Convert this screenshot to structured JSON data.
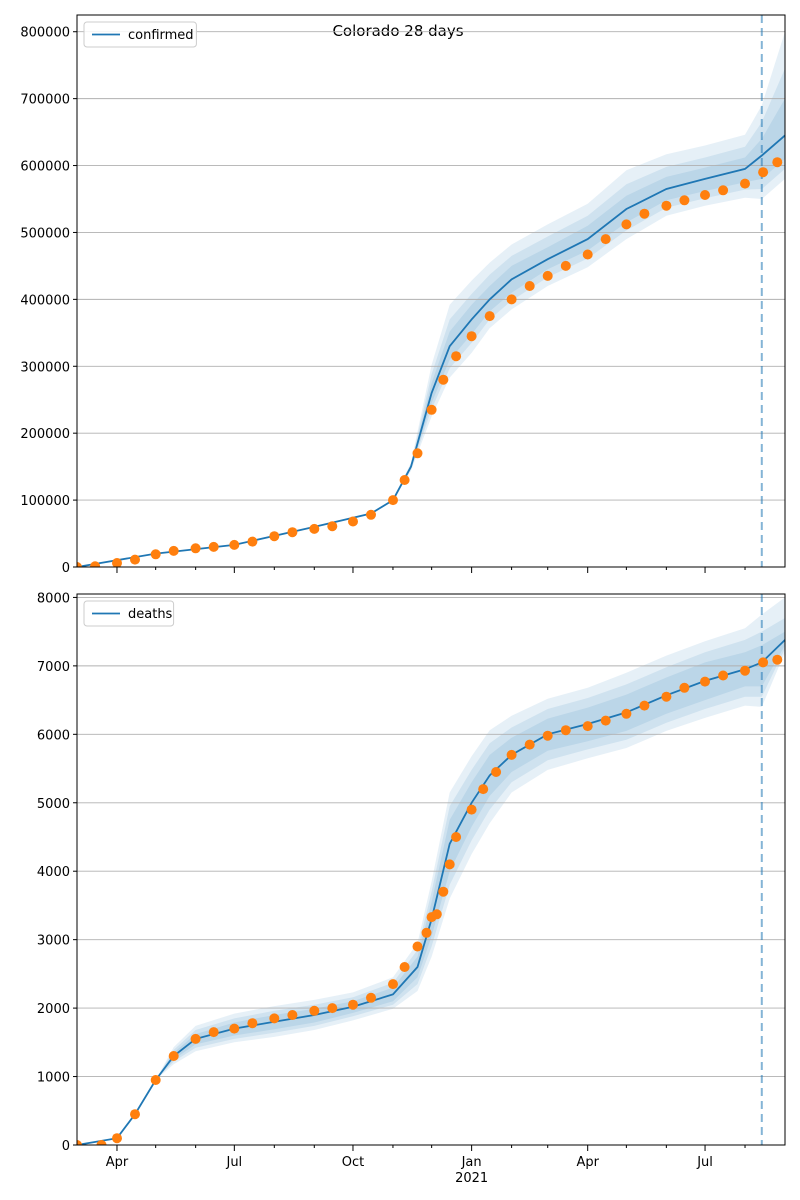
{
  "figure": {
    "title": "Colorado 28 days"
  },
  "chart_data": [
    {
      "type": "line",
      "title": "Colorado 28 days",
      "xlabel": "",
      "ylabel": "",
      "x_range": [
        "2020-03-01",
        "2021-09-01"
      ],
      "ylim": [
        0,
        825000
      ],
      "x_ticks": [
        {
          "date": "2020-04-01",
          "label": "Apr"
        },
        {
          "date": "2020-07-01",
          "label": "Jul"
        },
        {
          "date": "2020-10-01",
          "label": "Oct"
        },
        {
          "date": "2021-01-01",
          "label": "Jan",
          "sublabel": "2021"
        },
        {
          "date": "2021-04-01",
          "label": "Apr"
        },
        {
          "date": "2021-07-01",
          "label": "Jul"
        }
      ],
      "y_ticks": [
        0,
        100000,
        200000,
        300000,
        400000,
        500000,
        600000,
        700000,
        800000
      ],
      "grid": "horizontal",
      "legend": {
        "position": "top-left",
        "entries": [
          "confirmed"
        ]
      },
      "forecast_start": "2021-08-14",
      "series": [
        {
          "name": "confirmed",
          "role": "model",
          "color": "#1f77b4",
          "x": [
            "2020-03-01",
            "2020-05-01",
            "2020-07-01",
            "2020-09-01",
            "2020-10-15",
            "2020-11-01",
            "2020-11-15",
            "2020-12-01",
            "2020-12-15",
            "2021-01-01",
            "2021-01-15",
            "2021-02-01",
            "2021-03-01",
            "2021-04-01",
            "2021-05-01",
            "2021-06-01",
            "2021-07-01",
            "2021-08-01",
            "2021-08-14",
            "2021-09-01"
          ],
          "values": [
            0,
            20000,
            33000,
            60000,
            80000,
            100000,
            150000,
            260000,
            330000,
            370000,
            400000,
            430000,
            460000,
            490000,
            535000,
            565000,
            580000,
            595000,
            615000,
            645000
          ],
          "bands": [
            {
              "lower": [
                0,
                20000,
                33000,
                60000,
                80000,
                100000,
                148000,
                245000,
                310000,
                348000,
                382000,
                410000,
                445000,
                473000,
                515000,
                548000,
                562000,
                575000,
                580000,
                610000
              ],
              "upper": [
                0,
                20000,
                33000,
                60000,
                80000,
                100000,
                152000,
                275000,
                352000,
                392000,
                420000,
                450000,
                478000,
                510000,
                555000,
                583000,
                597000,
                612000,
                640000,
                700000
              ]
            },
            {
              "lower": [
                0,
                20000,
                33000,
                60000,
                80000,
                100000,
                146000,
                236000,
                297000,
                335000,
                370000,
                398000,
                433000,
                461000,
                503000,
                537000,
                551000,
                564000,
                565000,
                595000
              ],
              "upper": [
                0,
                20000,
                33000,
                60000,
                80000,
                100000,
                154000,
                288000,
                370000,
                408000,
                437000,
                465000,
                494000,
                525000,
                572000,
                598000,
                612000,
                628000,
                665000,
                745000
              ]
            },
            {
              "lower": [
                0,
                20000,
                33000,
                60000,
                80000,
                100000,
                144000,
                225000,
                283000,
                320000,
                357000,
                385000,
                420000,
                448000,
                490000,
                525000,
                540000,
                552000,
                550000,
                580000
              ],
              "upper": [
                0,
                20000,
                33000,
                60000,
                80000,
                100000,
                156000,
                302000,
                392000,
                428000,
                455000,
                482000,
                512000,
                543000,
                593000,
                617000,
                630000,
                646000,
                690000,
                800000
              ]
            }
          ]
        },
        {
          "name": "",
          "role": "observed",
          "color": "#ff7f0e",
          "x": [
            "2020-03-01",
            "2020-03-15",
            "2020-04-01",
            "2020-04-15",
            "2020-05-01",
            "2020-05-15",
            "2020-06-01",
            "2020-06-15",
            "2020-07-01",
            "2020-07-15",
            "2020-08-01",
            "2020-08-15",
            "2020-09-01",
            "2020-09-15",
            "2020-10-01",
            "2020-10-15",
            "2020-11-01",
            "2020-11-10",
            "2020-11-20",
            "2020-12-01",
            "2020-12-10",
            "2020-12-20",
            "2021-01-01",
            "2021-01-15",
            "2021-02-01",
            "2021-02-15",
            "2021-03-01",
            "2021-03-15",
            "2021-04-01",
            "2021-04-15",
            "2021-05-01",
            "2021-05-15",
            "2021-06-01",
            "2021-06-15",
            "2021-07-01",
            "2021-07-15",
            "2021-08-01",
            "2021-08-15",
            "2021-08-26"
          ],
          "values": [
            0,
            1000,
            6000,
            11000,
            19000,
            24000,
            28000,
            30000,
            33000,
            38000,
            46000,
            52000,
            57000,
            61000,
            68000,
            78000,
            100000,
            130000,
            170000,
            235000,
            280000,
            315000,
            345000,
            375000,
            400000,
            420000,
            435000,
            450000,
            467000,
            490000,
            512000,
            528000,
            540000,
            548000,
            556000,
            563000,
            573000,
            590000,
            605000
          ]
        }
      ]
    },
    {
      "type": "line",
      "title": "",
      "xlabel": "",
      "ylabel": "",
      "x_range": [
        "2020-03-01",
        "2021-09-01"
      ],
      "ylim": [
        0,
        8050
      ],
      "x_ticks": [
        {
          "date": "2020-04-01",
          "label": "Apr"
        },
        {
          "date": "2020-07-01",
          "label": "Jul"
        },
        {
          "date": "2020-10-01",
          "label": "Oct"
        },
        {
          "date": "2021-01-01",
          "label": "Jan",
          "sublabel": "2021"
        },
        {
          "date": "2021-04-01",
          "label": "Apr"
        },
        {
          "date": "2021-07-01",
          "label": "Jul"
        }
      ],
      "y_ticks": [
        0,
        1000,
        2000,
        3000,
        4000,
        5000,
        6000,
        7000,
        8000
      ],
      "grid": "horizontal",
      "legend": {
        "position": "top-left",
        "entries": [
          "deaths"
        ]
      },
      "forecast_start": "2021-08-14",
      "series": [
        {
          "name": "deaths",
          "role": "model",
          "color": "#1f77b4",
          "x": [
            "2020-03-01",
            "2020-04-01",
            "2020-04-15",
            "2020-05-01",
            "2020-05-15",
            "2020-06-01",
            "2020-07-01",
            "2020-08-01",
            "2020-09-01",
            "2020-10-01",
            "2020-11-01",
            "2020-11-20",
            "2020-12-01",
            "2020-12-15",
            "2021-01-01",
            "2021-01-15",
            "2021-02-01",
            "2021-03-01",
            "2021-04-01",
            "2021-05-01",
            "2021-06-01",
            "2021-07-01",
            "2021-08-01",
            "2021-08-14",
            "2021-09-01"
          ],
          "values": [
            0,
            100,
            450,
            950,
            1300,
            1550,
            1700,
            1800,
            1900,
            2020,
            2200,
            2600,
            3300,
            4400,
            5000,
            5400,
            5700,
            6000,
            6150,
            6320,
            6570,
            6780,
            6950,
            7050,
            7380
          ],
          "bands": [
            {
              "lower": [
                0,
                100,
                450,
                950,
                1250,
                1470,
                1600,
                1690,
                1790,
                1930,
                2100,
                2450,
                3050,
                4000,
                4650,
                5100,
                5450,
                5760,
                5900,
                6050,
                6300,
                6500,
                6700,
                6700,
                7300
              ],
              "upper": [
                0,
                100,
                450,
                950,
                1350,
                1620,
                1790,
                1900,
                1990,
                2100,
                2300,
                2750,
                3550,
                4750,
                5300,
                5700,
                5950,
                6230,
                6390,
                6580,
                6830,
                7050,
                7200,
                7300,
                7500
              ]
            },
            {
              "lower": [
                0,
                100,
                450,
                950,
                1220,
                1420,
                1550,
                1640,
                1740,
                1880,
                2050,
                2350,
                2900,
                3800,
                4450,
                4900,
                5300,
                5620,
                5780,
                5920,
                6170,
                6370,
                6550,
                6550,
                7250
              ],
              "upper": [
                0,
                100,
                450,
                950,
                1390,
                1680,
                1850,
                1960,
                2050,
                2160,
                2370,
                2850,
                3700,
                4950,
                5480,
                5870,
                6100,
                6370,
                6530,
                6730,
                6980,
                7200,
                7380,
                7500,
                7700
              ]
            },
            {
              "lower": [
                0,
                100,
                450,
                950,
                1180,
                1370,
                1500,
                1580,
                1680,
                1820,
                1990,
                2250,
                2750,
                3600,
                4250,
                4700,
                5150,
                5480,
                5650,
                5800,
                6050,
                6240,
                6420,
                6400,
                7200
              ],
              "upper": [
                0,
                100,
                450,
                950,
                1430,
                1740,
                1920,
                2030,
                2120,
                2230,
                2450,
                2950,
                3850,
                5150,
                5680,
                6060,
                6270,
                6520,
                6680,
                6900,
                7150,
                7360,
                7550,
                7750,
                8000
              ]
            }
          ]
        },
        {
          "name": "",
          "role": "observed",
          "color": "#ff7f0e",
          "x": [
            "2020-03-01",
            "2020-03-20",
            "2020-04-01",
            "2020-04-15",
            "2020-05-01",
            "2020-05-15",
            "2020-06-01",
            "2020-06-15",
            "2020-07-01",
            "2020-07-15",
            "2020-08-01",
            "2020-08-15",
            "2020-09-01",
            "2020-09-15",
            "2020-10-01",
            "2020-10-15",
            "2020-11-01",
            "2020-11-10",
            "2020-11-20",
            "2020-11-27",
            "2020-12-01",
            "2020-12-05",
            "2020-12-10",
            "2020-12-15",
            "2020-12-20",
            "2021-01-01",
            "2021-01-10",
            "2021-01-20",
            "2021-02-01",
            "2021-02-15",
            "2021-03-01",
            "2021-03-15",
            "2021-04-01",
            "2021-04-15",
            "2021-05-01",
            "2021-05-15",
            "2021-06-01",
            "2021-06-15",
            "2021-07-01",
            "2021-07-15",
            "2021-08-01",
            "2021-08-15",
            "2021-08-26"
          ],
          "values": [
            0,
            0,
            100,
            450,
            950,
            1300,
            1550,
            1650,
            1700,
            1780,
            1850,
            1900,
            1960,
            2000,
            2050,
            2150,
            2350,
            2600,
            2900,
            3100,
            3330,
            3370,
            3700,
            4100,
            4500,
            4900,
            5200,
            5450,
            5700,
            5850,
            5980,
            6060,
            6120,
            6200,
            6300,
            6420,
            6550,
            6680,
            6770,
            6860,
            6930,
            7050,
            7090
          ]
        }
      ]
    }
  ]
}
